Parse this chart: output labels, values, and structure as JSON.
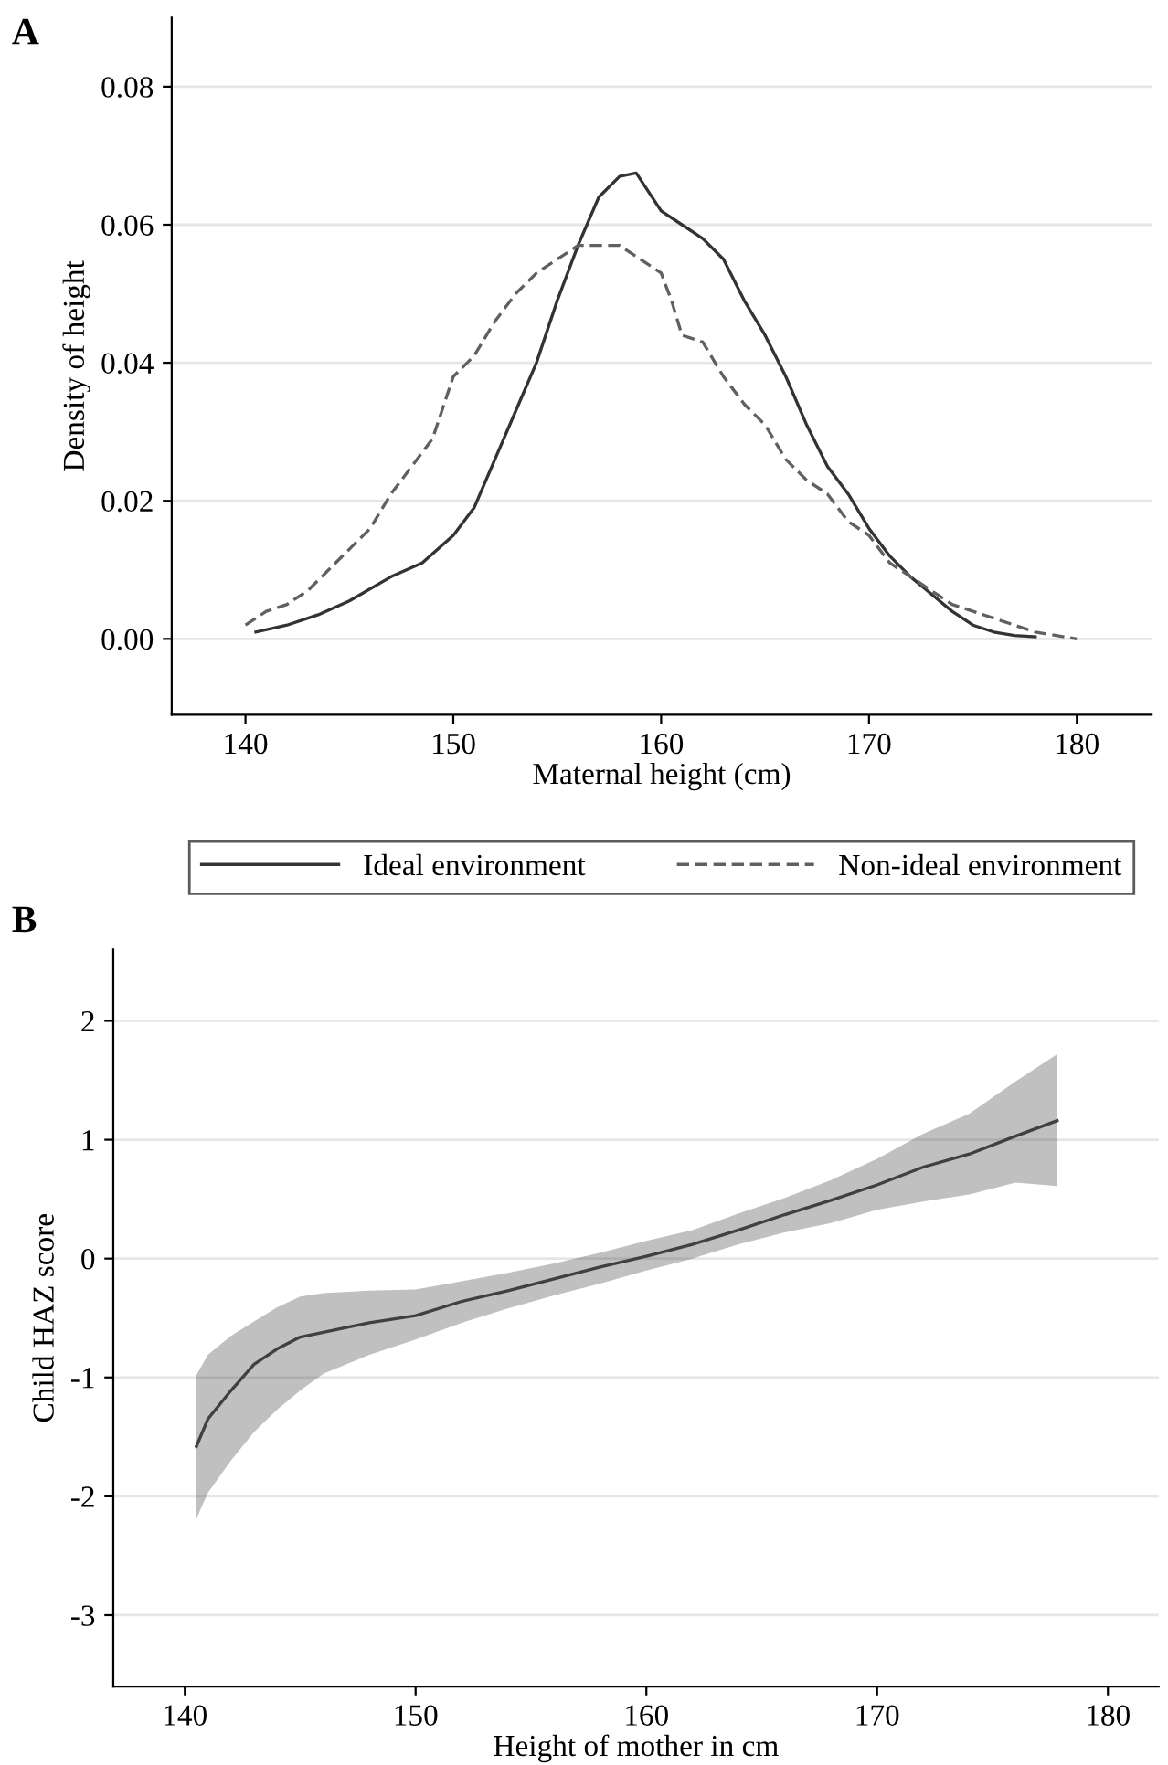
{
  "chart_data": [
    {
      "type": "line",
      "title": "A",
      "xlabel": "Maternal height (cm)",
      "ylabel": "Density of height",
      "xlim": [
        136.45,
        183.6
      ],
      "ylim": [
        -0.011,
        0.09
      ],
      "xticks": [
        140,
        150,
        160,
        170,
        180
      ],
      "yticks": [
        {
          "value": 0,
          "label": "0.00"
        },
        {
          "value": 0.02,
          "label": "0.02"
        },
        {
          "value": 0.04,
          "label": "0.04"
        },
        {
          "value": 0.06,
          "label": "0.06"
        },
        {
          "value": 0.08,
          "label": "0.08"
        }
      ],
      "grid": "y",
      "legend": "bottom",
      "marker": "none",
      "series": [
        {
          "name": "Ideal environment",
          "color": "#333333",
          "line_style": "solid",
          "x": [
            140.5,
            142,
            143.5,
            145,
            147,
            148.5,
            150,
            151,
            152,
            153,
            154,
            155,
            156,
            157,
            158,
            158.8,
            160,
            161,
            162,
            163,
            164,
            165,
            166,
            167,
            168,
            169,
            170,
            171,
            172,
            173,
            174,
            175,
            176,
            177,
            178
          ],
          "values": [
            0.001,
            0.002,
            0.0035,
            0.0055,
            0.009,
            0.011,
            0.015,
            0.019,
            0.026,
            0.033,
            0.04,
            0.049,
            0.057,
            0.064,
            0.067,
            0.0675,
            0.062,
            0.06,
            0.058,
            0.055,
            0.049,
            0.044,
            0.038,
            0.031,
            0.025,
            0.021,
            0.016,
            0.012,
            0.009,
            0.0065,
            0.004,
            0.002,
            0.001,
            0.0005,
            0.0003
          ]
        },
        {
          "name": "Non-ideal environment",
          "color": "#606060",
          "line_style": "dashed",
          "x": [
            140,
            141,
            142,
            143,
            144,
            145,
            146,
            147,
            148,
            149,
            150,
            151,
            152,
            153,
            154,
            155,
            156,
            157,
            158,
            159,
            160,
            160.5,
            161,
            162,
            163,
            164,
            165,
            166,
            167,
            168,
            169,
            170,
            171,
            172,
            173,
            174,
            175,
            176,
            177,
            178,
            180
          ],
          "values": [
            0.002,
            0.004,
            0.005,
            0.007,
            0.01,
            0.013,
            0.016,
            0.021,
            0.025,
            0.029,
            0.038,
            0.041,
            0.046,
            0.05,
            0.053,
            0.055,
            0.057,
            0.057,
            0.057,
            0.055,
            0.053,
            0.049,
            0.044,
            0.043,
            0.038,
            0.034,
            0.031,
            0.026,
            0.023,
            0.021,
            0.017,
            0.015,
            0.011,
            0.009,
            0.007,
            0.005,
            0.004,
            0.003,
            0.002,
            0.001,
            0.0
          ]
        }
      ]
    },
    {
      "type": "line",
      "title": "B",
      "xlabel": "Height of mother in cm",
      "ylabel": "Child HAZ score",
      "xlim": [
        136.9,
        182.2
      ],
      "ylim": [
        -3.6,
        2.6
      ],
      "xticks": [
        140,
        150,
        160,
        170,
        180
      ],
      "yticks": [
        -3,
        -2,
        -1,
        0,
        1,
        2
      ],
      "grid": "y",
      "legend": false,
      "marker": "none",
      "series": [
        {
          "color": "#404040",
          "line_style": "solid",
          "x": [
            140.5,
            141,
            142,
            143,
            144,
            145,
            146,
            148,
            150,
            152,
            154,
            156,
            158,
            160,
            162,
            164,
            166,
            168,
            170,
            172,
            174,
            176,
            177.8
          ],
          "values": [
            -1.58,
            -1.35,
            -1.11,
            -0.89,
            -0.76,
            -0.66,
            -0.62,
            -0.54,
            -0.48,
            -0.36,
            -0.27,
            -0.17,
            -0.07,
            0.02,
            0.12,
            0.24,
            0.37,
            0.49,
            0.62,
            0.77,
            0.88,
            1.03,
            1.16
          ],
          "upper": [
            -0.98,
            -0.81,
            -0.65,
            -0.53,
            -0.41,
            -0.32,
            -0.29,
            -0.27,
            -0.26,
            -0.19,
            -0.12,
            -0.04,
            0.05,
            0.15,
            0.24,
            0.38,
            0.51,
            0.66,
            0.84,
            1.05,
            1.22,
            1.49,
            1.72
          ],
          "lower": [
            -2.19,
            -1.97,
            -1.7,
            -1.46,
            -1.27,
            -1.11,
            -0.97,
            -0.81,
            -0.68,
            -0.54,
            -0.42,
            -0.31,
            -0.21,
            -0.1,
            0.0,
            0.12,
            0.22,
            0.3,
            0.41,
            0.48,
            0.54,
            0.64,
            0.61
          ]
        }
      ]
    }
  ]
}
